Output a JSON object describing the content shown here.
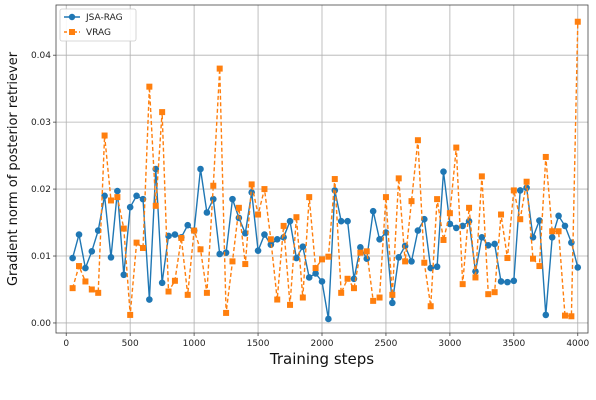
{
  "chart_data": {
    "type": "line",
    "title": "",
    "xlabel": "Training steps",
    "ylabel": "Gradient norm of posterior retriever",
    "xlim": [
      -80,
      4080
    ],
    "ylim": [
      -0.0015,
      0.0475
    ],
    "xticks": [
      0,
      500,
      1000,
      1500,
      2000,
      2500,
      3000,
      3500,
      4000
    ],
    "xtick_labels": [
      "0",
      "500",
      "1000",
      "1500",
      "2000",
      "2500",
      "3000",
      "3500",
      "4000"
    ],
    "yticks": [
      0.0,
      0.01,
      0.02,
      0.03,
      0.04
    ],
    "ytick_labels": [
      "0.00",
      "0.01",
      "0.02",
      "0.03",
      "0.04"
    ],
    "grid": true,
    "legend_position": "top-left",
    "series": [
      {
        "name": "JSA-RAG",
        "color": "#1f77b4",
        "marker": "circle",
        "line": "solid",
        "x": [
          50,
          100,
          150,
          200,
          250,
          300,
          350,
          400,
          450,
          500,
          550,
          600,
          650,
          700,
          750,
          800,
          850,
          900,
          950,
          1000,
          1050,
          1100,
          1150,
          1200,
          1250,
          1300,
          1350,
          1400,
          1450,
          1500,
          1550,
          1600,
          1650,
          1700,
          1750,
          1800,
          1850,
          1900,
          1950,
          2000,
          2050,
          2100,
          2150,
          2200,
          2250,
          2300,
          2350,
          2400,
          2450,
          2500,
          2550,
          2600,
          2650,
          2700,
          2750,
          2800,
          2850,
          2900,
          2950,
          3000,
          3050,
          3100,
          3150,
          3200,
          3250,
          3300,
          3350,
          3400,
          3450,
          3500,
          3550,
          3600,
          3650,
          3700,
          3750,
          3800,
          3850,
          3900,
          3950,
          4000
        ],
        "y": [
          0.0097,
          0.0132,
          0.0082,
          0.0107,
          0.0138,
          0.019,
          0.0098,
          0.0197,
          0.0072,
          0.0173,
          0.019,
          0.0185,
          0.0035,
          0.023,
          0.006,
          0.013,
          0.0132,
          0.0128,
          0.0146,
          0.0138,
          0.023,
          0.0165,
          0.0185,
          0.0103,
          0.0105,
          0.0185,
          0.0157,
          0.0134,
          0.0195,
          0.0108,
          0.0132,
          0.0117,
          0.0125,
          0.0128,
          0.0152,
          0.0097,
          0.0114,
          0.0068,
          0.0074,
          0.0062,
          0.0006,
          0.0198,
          0.0152,
          0.0152,
          0.0066,
          0.0113,
          0.0096,
          0.0167,
          0.0125,
          0.0135,
          0.003,
          0.0098,
          0.0115,
          0.0092,
          0.0138,
          0.0155,
          0.0082,
          0.0084,
          0.0226,
          0.0148,
          0.0142,
          0.0145,
          0.0152,
          0.0077,
          0.0128,
          0.0116,
          0.0118,
          0.0062,
          0.0061,
          0.0063,
          0.0198,
          0.0202,
          0.0128,
          0.0153,
          0.0012,
          0.0128,
          0.016,
          0.0145,
          0.012,
          0.0083
        ]
      },
      {
        "name": "VRAG",
        "color": "#ff7f0e",
        "marker": "square",
        "line": "dashed",
        "x": [
          50,
          100,
          150,
          200,
          250,
          300,
          350,
          400,
          450,
          500,
          550,
          600,
          650,
          700,
          750,
          800,
          850,
          900,
          950,
          1000,
          1050,
          1100,
          1150,
          1200,
          1250,
          1300,
          1350,
          1400,
          1450,
          1500,
          1550,
          1600,
          1650,
          1700,
          1750,
          1800,
          1850,
          1900,
          1950,
          2000,
          2050,
          2100,
          2150,
          2200,
          2250,
          2300,
          2350,
          2400,
          2450,
          2500,
          2550,
          2600,
          2650,
          2700,
          2750,
          2800,
          2850,
          2900,
          2950,
          3000,
          3050,
          3100,
          3150,
          3200,
          3250,
          3300,
          3350,
          3400,
          3450,
          3500,
          3550,
          3600,
          3650,
          3700,
          3750,
          3800,
          3850,
          3900,
          3950,
          4000
        ],
        "y": [
          0.0052,
          0.0085,
          0.0062,
          0.005,
          0.0045,
          0.028,
          0.0183,
          0.0188,
          0.0141,
          0.0012,
          0.012,
          0.0112,
          0.0353,
          0.0175,
          0.0315,
          0.0047,
          0.0063,
          0.0127,
          0.0042,
          0.0138,
          0.011,
          0.0045,
          0.0205,
          0.038,
          0.0015,
          0.0092,
          0.0172,
          0.0088,
          0.0207,
          0.0162,
          0.02,
          0.0125,
          0.0035,
          0.0145,
          0.0027,
          0.0158,
          0.0038,
          0.0188,
          0.0082,
          0.0095,
          0.0099,
          0.0215,
          0.0045,
          0.0066,
          0.0052,
          0.0105,
          0.0107,
          0.0033,
          0.0038,
          0.0188,
          0.0042,
          0.0216,
          0.0092,
          0.0182,
          0.0273,
          0.009,
          0.0025,
          0.0185,
          0.0124,
          0.0164,
          0.0262,
          0.0058,
          0.0172,
          0.0068,
          0.0219,
          0.0043,
          0.0046,
          0.0162,
          0.0097,
          0.0198,
          0.0155,
          0.0211,
          0.0096,
          0.0085,
          0.0248,
          0.0137,
          0.0137,
          0.0011,
          0.001,
          0.045
        ]
      }
    ]
  }
}
